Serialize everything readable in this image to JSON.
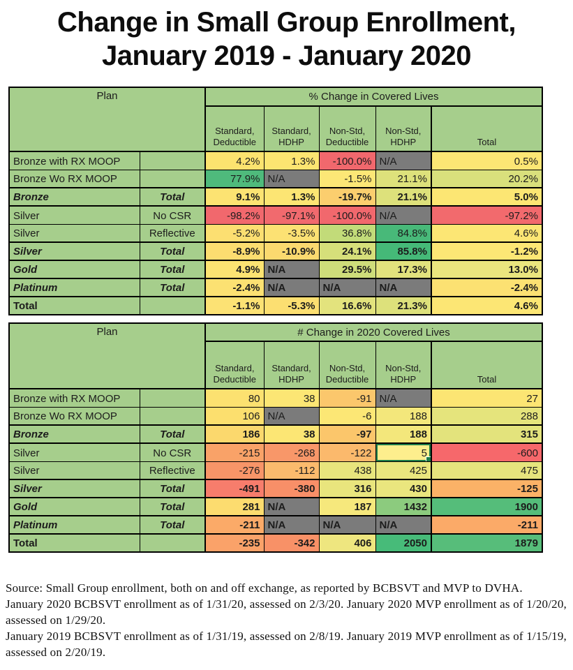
{
  "title": {
    "line1": "Change in Small Group Enrollment,",
    "line2": "January 2019 - January 2020"
  },
  "palette": {
    "header_green": "#a6ce8c",
    "na_gray": "#7b7b7b",
    "border_black": "#000000",
    "selection_green": "#1e7d4a",
    "scale_red": "#f8696b",
    "scale_yellow": "#ffeb84",
    "scale_green": "#63be7b"
  },
  "chart_data": [
    {
      "type": "table",
      "plan_header": "Plan",
      "group_header": "% Change in Covered Lives",
      "col_header_lines": [
        [
          "Standard,",
          "Deductible"
        ],
        [
          "Standard,",
          "HDHP"
        ],
        [
          "Non-Std,",
          "Deductible"
        ],
        [
          "Non-Std,",
          "HDHP"
        ],
        [
          "Total"
        ]
      ],
      "rows": [
        {
          "plan": "Bronze with RX MOOP",
          "modifier": "",
          "style": "normal",
          "cells": [
            {
              "v": "4.2%",
              "bg": "#fce36f"
            },
            {
              "v": "1.3%",
              "bg": "#fce571"
            },
            {
              "v": "-100.0%",
              "bg": "#f1686d"
            },
            {
              "v": "N/A",
              "bg": "#7b7b7b",
              "na": true
            },
            {
              "v": "0.5%",
              "bg": "#fce674"
            }
          ]
        },
        {
          "plan": "Bronze Wo RX MOOP",
          "modifier": "",
          "style": "normal",
          "cells": [
            {
              "v": "77.9%",
              "bg": "#4fba7c"
            },
            {
              "v": "N/A",
              "bg": "#7b7b7b",
              "na": true
            },
            {
              "v": "-1.5%",
              "bg": "#fce776"
            },
            {
              "v": "21.1%",
              "bg": "#dde17b"
            },
            {
              "v": "20.2%",
              "bg": "#d9e07c"
            }
          ]
        },
        {
          "plan": "Bronze",
          "modifier": "Total",
          "style": "subtotal",
          "cells": [
            {
              "v": "9.1%",
              "bg": "#fce372"
            },
            {
              "v": "1.3%",
              "bg": "#fce573"
            },
            {
              "v": "-19.7%",
              "bg": "#fbce6e"
            },
            {
              "v": "21.1%",
              "bg": "#dde17b"
            },
            {
              "v": "5.0%",
              "bg": "#fce673"
            }
          ]
        },
        {
          "plan": "Silver",
          "modifier": "No CSR",
          "style": "normal",
          "cells": [
            {
              "v": "-98.2%",
              "bg": "#f1686d"
            },
            {
              "v": "-97.1%",
              "bg": "#f16a6e"
            },
            {
              "v": "-100.0%",
              "bg": "#f1686d"
            },
            {
              "v": "N/A",
              "bg": "#7b7b7b",
              "na": true
            },
            {
              "v": "-97.2%",
              "bg": "#f26a6d"
            }
          ]
        },
        {
          "plan": "Silver",
          "modifier": "Reflective",
          "style": "normal",
          "cells": [
            {
              "v": "-5.2%",
              "bg": "#fcdf71"
            },
            {
              "v": "-3.5%",
              "bg": "#fce173"
            },
            {
              "v": "36.8%",
              "bg": "#c2db79"
            },
            {
              "v": "84.8%",
              "bg": "#48b979"
            },
            {
              "v": "4.6%",
              "bg": "#fce674"
            }
          ]
        },
        {
          "plan": "Silver",
          "modifier": "Total",
          "style": "subtotal",
          "cells": [
            {
              "v": "-8.9%",
              "bg": "#fcdd70"
            },
            {
              "v": "-10.9%",
              "bg": "#fbd96f"
            },
            {
              "v": "24.1%",
              "bg": "#d6df7a"
            },
            {
              "v": "85.8%",
              "bg": "#45b978"
            },
            {
              "v": "-1.2%",
              "bg": "#fce775"
            }
          ]
        },
        {
          "plan": "Gold",
          "modifier": "Total",
          "style": "subtotal",
          "cells": [
            {
              "v": "4.9%",
              "bg": "#fce372"
            },
            {
              "v": "N/A",
              "bg": "#7b7b7b",
              "na": true
            },
            {
              "v": "29.5%",
              "bg": "#cedd7a"
            },
            {
              "v": "17.3%",
              "bg": "#e2e27d"
            },
            {
              "v": "13.0%",
              "bg": "#eae57e"
            }
          ]
        },
        {
          "plan": "Platinum",
          "modifier": "Total",
          "style": "subtotal",
          "cells": [
            {
              "v": "-2.4%",
              "bg": "#fce172"
            },
            {
              "v": "N/A",
              "bg": "#7b7b7b",
              "na": true
            },
            {
              "v": "N/A",
              "bg": "#7b7b7b",
              "na": true
            },
            {
              "v": "N/A",
              "bg": "#7b7b7b",
              "na": true
            },
            {
              "v": "-2.4%",
              "bg": "#fce172"
            }
          ]
        },
        {
          "plan": "Total",
          "modifier": "",
          "style": "grand",
          "cells": [
            {
              "v": "-1.1%",
              "bg": "#fce274"
            },
            {
              "v": "-5.3%",
              "bg": "#fcdf71"
            },
            {
              "v": "16.6%",
              "bg": "#e3e37d"
            },
            {
              "v": "21.3%",
              "bg": "#dde17b"
            },
            {
              "v": "4.6%",
              "bg": "#fce674"
            }
          ]
        }
      ]
    },
    {
      "type": "table",
      "plan_header": "Plan",
      "group_header": "# Change in 2020 Covered Lives",
      "col_header_lines": [
        [
          "Standard,",
          "Deductible"
        ],
        [
          "Standard,",
          "HDHP"
        ],
        [
          "Non-Std,",
          "Deductible"
        ],
        [
          "Non-Std,",
          "HDHP"
        ],
        [
          "Total"
        ]
      ],
      "rows": [
        {
          "plan": "Bronze with RX MOOP",
          "modifier": "",
          "style": "normal",
          "cells": [
            {
              "v": "80",
              "bg": "#fce170"
            },
            {
              "v": "38",
              "bg": "#fce674"
            },
            {
              "v": "-91",
              "bg": "#fbc76c"
            },
            {
              "v": "N/A",
              "bg": "#7b7b7b",
              "na": true
            },
            {
              "v": "27",
              "bg": "#fce573"
            }
          ]
        },
        {
          "plan": "Bronze Wo RX MOOP",
          "modifier": "",
          "style": "normal",
          "cells": [
            {
              "v": "106",
              "bg": "#fcdf6e"
            },
            {
              "v": "N/A",
              "bg": "#7b7b7b",
              "na": true
            },
            {
              "v": "-6",
              "bg": "#fce775"
            },
            {
              "v": "188",
              "bg": "#f3e77b"
            },
            {
              "v": "288",
              "bg": "#e5e47c"
            }
          ]
        },
        {
          "plan": "Bronze",
          "modifier": "Total",
          "style": "subtotal",
          "cells": [
            {
              "v": "186",
              "bg": "#fbd86d"
            },
            {
              "v": "38",
              "bg": "#fce674"
            },
            {
              "v": "-97",
              "bg": "#fbc66b"
            },
            {
              "v": "188",
              "bg": "#f3e77b"
            },
            {
              "v": "315",
              "bg": "#e3e37c"
            }
          ]
        },
        {
          "plan": "Silver",
          "modifier": "No CSR",
          "style": "normal",
          "cells": [
            {
              "v": "-215",
              "bg": "#f9a268"
            },
            {
              "v": "-268",
              "bg": "#f89769"
            },
            {
              "v": "-122",
              "bg": "#fbb96c"
            },
            {
              "v": "5",
              "bg": "#fdee8d",
              "selected": true
            },
            {
              "v": "-600",
              "bg": "#f6686b"
            }
          ]
        },
        {
          "plan": "Silver",
          "modifier": "Reflective",
          "style": "normal",
          "cells": [
            {
              "v": "-276",
              "bg": "#f89568"
            },
            {
              "v": "-112",
              "bg": "#fbbb6d"
            },
            {
              "v": "438",
              "bg": "#e8e57d"
            },
            {
              "v": "425",
              "bg": "#eae67e"
            },
            {
              "v": "475",
              "bg": "#e6e47d"
            }
          ]
        },
        {
          "plan": "Silver",
          "modifier": "Total",
          "style": "subtotal",
          "cells": [
            {
              "v": "-491",
              "bg": "#f77d6c"
            },
            {
              "v": "-380",
              "bg": "#f88f68"
            },
            {
              "v": "316",
              "bg": "#e9e57d"
            },
            {
              "v": "430",
              "bg": "#eae67e"
            },
            {
              "v": "-125",
              "bg": "#fbb267"
            }
          ]
        },
        {
          "plan": "Gold",
          "modifier": "Total",
          "style": "subtotal",
          "cells": [
            {
              "v": "281",
              "bg": "#fcdc6f"
            },
            {
              "v": "N/A",
              "bg": "#7b7b7b",
              "na": true
            },
            {
              "v": "187",
              "bg": "#f6e87c"
            },
            {
              "v": "1432",
              "bg": "#8ccb7e"
            },
            {
              "v": "1900",
              "bg": "#55bd7a"
            }
          ]
        },
        {
          "plan": "Platinum",
          "modifier": "Total",
          "style": "subtotal",
          "cells": [
            {
              "v": "-211",
              "bg": "#fbaa68"
            },
            {
              "v": "N/A",
              "bg": "#7b7b7b",
              "na": true
            },
            {
              "v": "N/A",
              "bg": "#7b7b7b",
              "na": true
            },
            {
              "v": "N/A",
              "bg": "#7b7b7b",
              "na": true
            },
            {
              "v": "-211",
              "bg": "#fbaa68"
            }
          ]
        },
        {
          "plan": "Total",
          "modifier": "",
          "style": "grand",
          "cells": [
            {
              "v": "-235",
              "bg": "#faa269"
            },
            {
              "v": "-342",
              "bg": "#f89167"
            },
            {
              "v": "406",
              "bg": "#eee67f"
            },
            {
              "v": "2050",
              "bg": "#47bb79"
            },
            {
              "v": "1879",
              "bg": "#57bd7a"
            }
          ]
        }
      ]
    }
  ],
  "footer": {
    "lines": [
      "Source: Small Group enrollment, both on and off exchange, as reported by BCBSVT and MVP to DVHA.",
      "January 2020 BCBSVT enrollment as of 1/31/20, assessed on 2/3/20. January 2020 MVP enrollment as of 1/20/20,",
      "assessed on 1/29/20.",
      "January 2019 BCBSVT enrollment as of 1/31/19, assessed on 2/8/19. January 2019 MVP enrollment as of 1/15/19,",
      "assessed on 2/20/19."
    ]
  }
}
